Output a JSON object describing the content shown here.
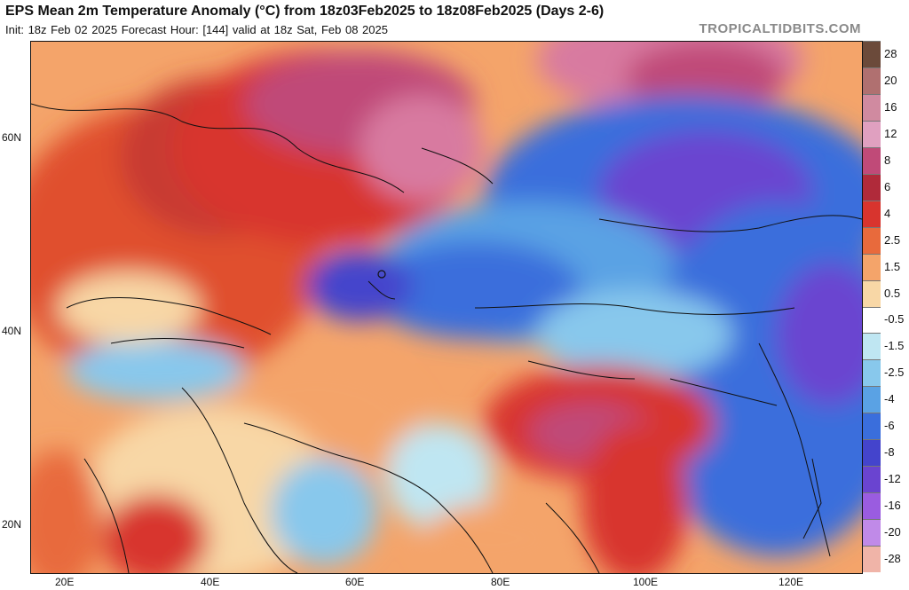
{
  "header": {
    "title": "EPS Mean 2m Temperature Anomaly (°C) from 18z03Feb2025 to 18z08Feb2025 (Days 2-6)",
    "subtitle": "Init: 18z Feb 02 2025   Forecast Hour: [144]   valid at 18z Sat, Feb 08 2025",
    "source": "TROPICALTIDBITS.COM"
  },
  "map": {
    "lat_labels": [
      "60N",
      "40N",
      "20N"
    ],
    "lon_labels": [
      "20E",
      "40E",
      "60E",
      "80E",
      "100E",
      "120E"
    ]
  },
  "colorbar": {
    "labels": [
      "28",
      "20",
      "16",
      "12",
      "8",
      "6",
      "4",
      "2.5",
      "1.5",
      "0.5",
      "-0.5",
      "-1.5",
      "-2.5",
      "-4",
      "-6",
      "-8",
      "-12",
      "-16",
      "-20",
      "-28"
    ],
    "colors": [
      "#6b4a3a",
      "#b07070",
      "#d08aa0",
      "#e0a0c0",
      "#c04a78",
      "#b02a3a",
      "#d8342e",
      "#e86a3c",
      "#f4a46a",
      "#f8d7a6",
      "#ffffff",
      "#bfe6f2",
      "#88c8ec",
      "#5aa2e4",
      "#3a6edc",
      "#4444cc",
      "#6a44d0",
      "#9a5ce0",
      "#c08ae8",
      "#f0b4a8"
    ]
  }
}
